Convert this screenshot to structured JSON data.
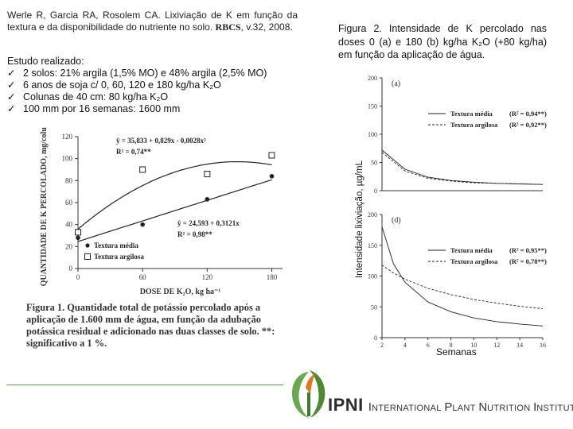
{
  "citation": {
    "text": "Werle R, Garcia RA, Rosolem CA. Lixiviação de K em função da textura e da disponibilidade do nutriente no solo.",
    "journal": "RBCS",
    "volume": ", v.32, 2008."
  },
  "study": {
    "title": "Estudo realizado:",
    "items": [
      "2 solos: 21% argila (1,5% MO) e 48% argila (2,5% MO)",
      "6 anos de soja c/ 0, 60, 120 e 180 kg/ha K₂O",
      "Colunas de 40 cm: 80 kg/ha K₂O",
      "100 mm por 16 semanas: 1600 mm"
    ]
  },
  "figure2": {
    "caption": "Figura 2. Intensidade de K percolado nas doses 0 (a) e 180 (b) kg/ha K₂O (+80 kg/ha) em função da aplicação de água.",
    "ylabel": "Intensidade lixiviação, µg/mL",
    "xlabel": "Semanas"
  },
  "figure1": {
    "caption": "Figura 1. Quantidade total de potássio percolado após a aplicação de 1.600 mm de água, em função da adubação potássica residual e adicionado nas duas classes de solo. **: significativo a 1 %."
  },
  "logo": {
    "name": "IPNI",
    "tagline_words": [
      "International",
      "Plant",
      "Nutrition",
      "Institute"
    ]
  },
  "colors": {
    "accent_green": "#5c9a3a",
    "logo_orange": "#e07a1f"
  },
  "chart_data": [
    {
      "id": "figure1",
      "type": "scatter",
      "xlabel": "DOSE DE K₂O, kg ha⁻¹",
      "ylabel": "QUANTIDADE DE K PERCOLADO, mg/coluna",
      "xticks": [
        0,
        60,
        120,
        180
      ],
      "yticks": [
        0,
        20,
        40,
        60,
        80,
        100,
        120
      ],
      "xlim": [
        0,
        190
      ],
      "ylim": [
        0,
        120
      ],
      "series": [
        {
          "name": "Textura média",
          "marker": "filled-circle",
          "x": [
            0,
            60,
            120,
            180
          ],
          "y": [
            28,
            40,
            63,
            84
          ],
          "equation": "ŷ = 24,593 + 0,3121x",
          "r2": "R² = 0,98**",
          "fit": {
            "type": "linear",
            "a": 24.593,
            "b": 0.3121
          }
        },
        {
          "name": "Textura argilosa",
          "marker": "open-square",
          "x": [
            0,
            60,
            120,
            180
          ],
          "y": [
            33,
            90,
            86,
            103
          ],
          "equation": "ŷ = 35,833 + 0,829x - 0,0028x²",
          "r2": "R² = 0,74**",
          "fit": {
            "type": "quadratic",
            "a": 35.833,
            "b": 0.829,
            "c": -0.0028
          }
        }
      ]
    },
    {
      "id": "figure2a",
      "type": "line",
      "panel_label": "(a)",
      "yticks": [
        0,
        50,
        100,
        150,
        200
      ],
      "ylim": [
        0,
        200
      ],
      "xlim": [
        2,
        16
      ],
      "series": [
        {
          "name": "Textura média",
          "r2": "(R² = 0,94**)",
          "style": "solid",
          "x": [
            2,
            4,
            6,
            8,
            10,
            12,
            14,
            16
          ],
          "y": [
            72,
            38,
            24,
            18,
            15,
            13,
            12,
            11
          ]
        },
        {
          "name": "Textura argilosa",
          "r2": "(R² = 0,92**)",
          "style": "dashed",
          "x": [
            2,
            4,
            6,
            8,
            10,
            12,
            14,
            16
          ],
          "y": [
            68,
            35,
            22,
            17,
            14,
            13,
            12,
            11
          ]
        }
      ]
    },
    {
      "id": "figure2d",
      "type": "line",
      "panel_label": "(d)",
      "xticks": [
        2,
        4,
        6,
        8,
        10,
        12,
        14,
        16
      ],
      "yticks": [
        0,
        50,
        100,
        150,
        200
      ],
      "ylim": [
        0,
        200
      ],
      "xlim": [
        2,
        16
      ],
      "series": [
        {
          "name": "Textura média",
          "r2": "(R² = 0,95**)",
          "style": "solid",
          "x": [
            2,
            3,
            4,
            6,
            8,
            10,
            12,
            14,
            16
          ],
          "y": [
            180,
            120,
            90,
            58,
            42,
            32,
            26,
            22,
            19
          ]
        },
        {
          "name": "Textura argilosa",
          "r2": "(R² = 0,78**)",
          "style": "dashed",
          "x": [
            2,
            3,
            4,
            6,
            8,
            10,
            12,
            14,
            16
          ],
          "y": [
            118,
            105,
            95,
            80,
            70,
            62,
            56,
            51,
            47
          ]
        }
      ]
    }
  ]
}
